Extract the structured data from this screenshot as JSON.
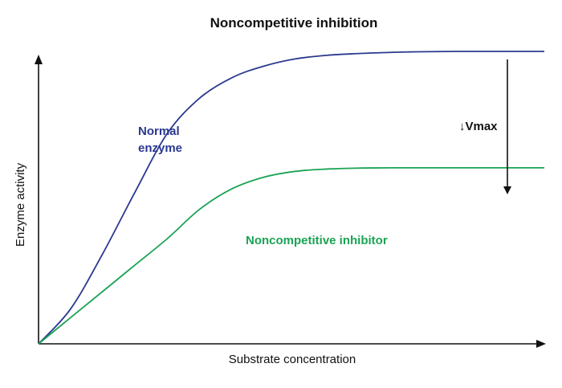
{
  "chart_data": {
    "type": "line",
    "title": "Noncompetitive inhibition",
    "xlabel": "Substrate concentration",
    "ylabel": "Enzyme activity",
    "grid": false,
    "legend": "inline labels",
    "series": [
      {
        "name": "Normal enzyme",
        "label_lines": [
          "Normal",
          "enzyme"
        ],
        "color": "#2b3990",
        "x": [
          0,
          40,
          80,
          120,
          160,
          200,
          240,
          280,
          320,
          360,
          400,
          440,
          480,
          520,
          560,
          600,
          628
        ],
        "y": [
          0,
          12,
          31,
          52,
          72,
          84,
          91,
          95,
          97.5,
          98.7,
          99.3,
          99.7,
          99.9,
          100,
          100,
          100,
          100
        ]
      },
      {
        "name": "Noncompetitive inhibitor",
        "color": "#1aa354",
        "x": [
          0,
          40,
          80,
          120,
          160,
          200,
          240,
          280,
          320,
          360,
          400,
          440,
          480,
          520,
          560,
          600,
          628
        ],
        "y": [
          0,
          9,
          18,
          27,
          36,
          46,
          53,
          57,
          59,
          59.8,
          60.1,
          60.2,
          60.2,
          60.2,
          60.2,
          60.2,
          60.2
        ]
      }
    ],
    "annotations": [
      {
        "text": "↓Vmax",
        "kind": "downward arrow from Normal enzyme plateau to Noncompetitive inhibitor plateau"
      }
    ],
    "xlim": [
      0,
      628
    ],
    "ylim": [
      0,
      100
    ]
  }
}
